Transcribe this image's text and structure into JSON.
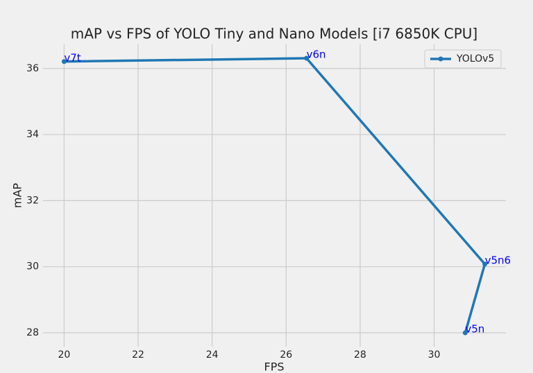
{
  "chart_data": {
    "type": "line",
    "title": "mAP vs FPS of YOLO Tiny and Nano Models [i7 6850K CPU]",
    "x_label": "FPS",
    "y_label": "mAP",
    "x": [
      20,
      26.55,
      31.37,
      30.84
    ],
    "series": [
      {
        "name": "YOLOv5",
        "color": "#1f77b4",
        "values": [
          36.21,
          36.31,
          30.08,
          28.0
        ]
      }
    ],
    "point_labels": [
      "v7t",
      "v6n",
      "v5n6",
      "v5n"
    ],
    "point_label_color": "#0000ff",
    "xlim": [
      19.43,
      31.94
    ],
    "ylim": [
      27.58,
      36.73
    ],
    "xticks": [
      20,
      22,
      24,
      26,
      28,
      30
    ],
    "yticks": [
      28,
      30,
      32,
      34,
      36
    ],
    "grid": true,
    "legend": "upper-right"
  }
}
